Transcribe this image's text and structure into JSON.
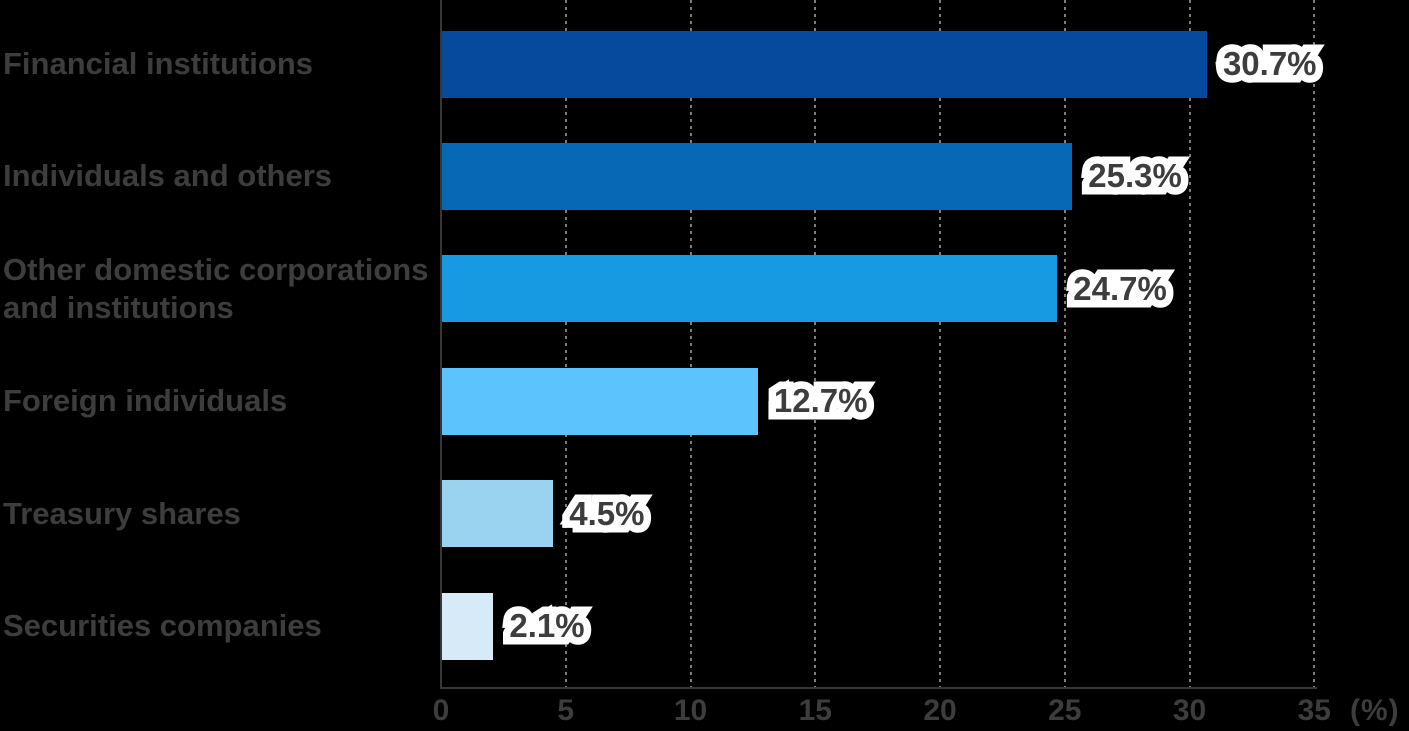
{
  "chart_data": {
    "type": "bar",
    "orientation": "horizontal",
    "title": "",
    "categories": [
      "Financial institutions",
      "Individuals and others",
      "Other domestic corporations and institutions",
      "Foreign individuals",
      "Treasury shares",
      "Securities companies"
    ],
    "values": [
      30.7,
      25.3,
      24.7,
      12.7,
      4.5,
      2.1
    ],
    "value_labels": [
      "30.7%",
      "25.3%",
      "24.7%",
      "12.7%",
      "4.5%",
      "2.1%"
    ],
    "bar_colors": [
      "#064a9d",
      "#0768b6",
      "#179ae1",
      "#5cc3fc",
      "#99d3f0",
      "#d6eaf8"
    ],
    "xlabel": "(%)",
    "xlim": [
      0,
      35
    ],
    "x_ticks": [
      0,
      5,
      10,
      15,
      20,
      25,
      30,
      35
    ],
    "grid": "vertical-dashed",
    "legend": "none"
  },
  "rows": [
    {
      "lines": [
        "Financial institutions"
      ],
      "value": 30.7,
      "value_label": "30.7%",
      "color": "#064a9d"
    },
    {
      "lines": [
        "Individuals and others"
      ],
      "value": 25.3,
      "value_label": "25.3%",
      "color": "#0768b6"
    },
    {
      "lines": [
        "Other domestic corporations",
        "and institutions"
      ],
      "value": 24.7,
      "value_label": "24.7%",
      "color": "#179ae1"
    },
    {
      "lines": [
        "Foreign individuals"
      ],
      "value": 12.7,
      "value_label": "12.7%",
      "color": "#5cc3fc"
    },
    {
      "lines": [
        "Treasury shares"
      ],
      "value": 4.5,
      "value_label": "4.5%",
      "color": "#99d3f0"
    },
    {
      "lines": [
        "Securities companies"
      ],
      "value": 2.1,
      "value_label": "2.1%",
      "color": "#d6eaf8"
    }
  ],
  "axis": {
    "tick_labels": [
      "0",
      "5",
      "10",
      "15",
      "20",
      "25",
      "30",
      "35"
    ],
    "unit_label": "(%)"
  },
  "colors": {
    "background": "#000000",
    "text": "#3d3d3d",
    "grid": "#7d7d7d",
    "axis": "#373737",
    "halo": "#ffffff"
  }
}
